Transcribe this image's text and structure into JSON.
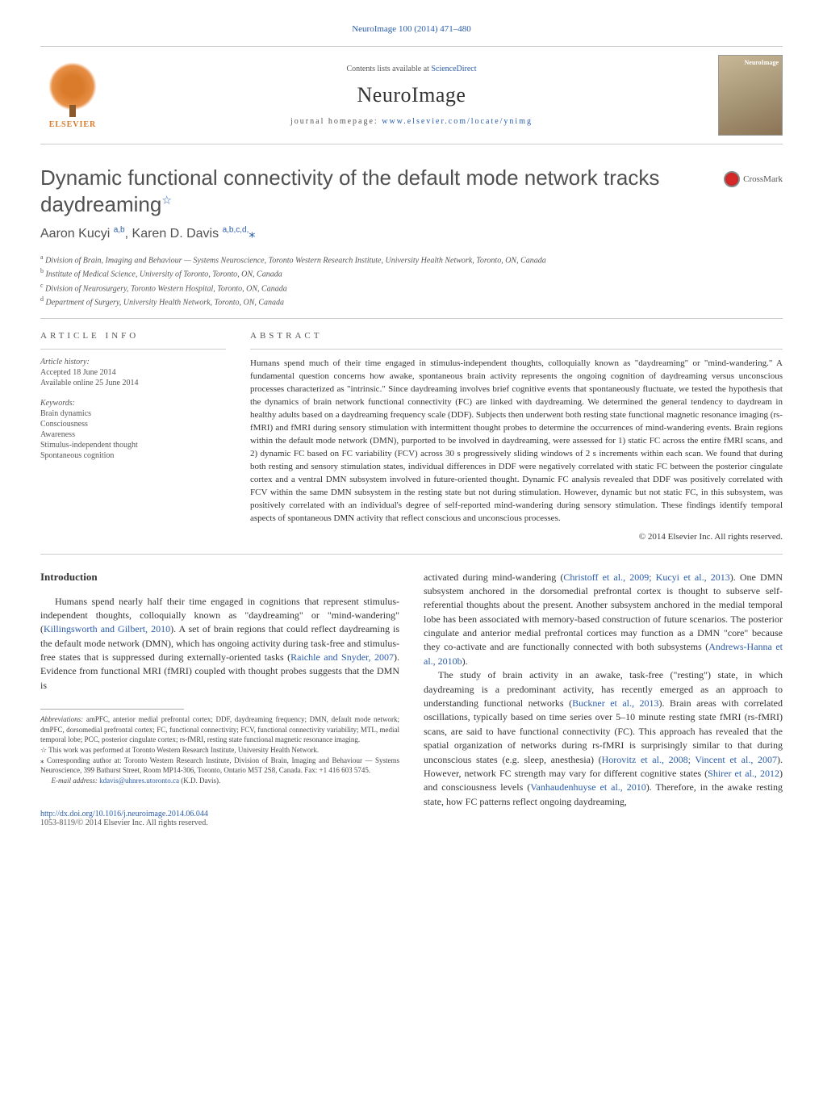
{
  "journal_ref": {
    "text": "NeuroImage 100 (2014) 471–480",
    "link_color": "#2a5caa"
  },
  "masthead": {
    "contents_prefix": "Contents lists available at ",
    "contents_link": "ScienceDirect",
    "journal_name": "NeuroImage",
    "homepage_prefix": "journal homepage: ",
    "homepage_url": "www.elsevier.com/locate/ynimg",
    "publisher_name": "ELSEVIER"
  },
  "crossmark_label": "CrossMark",
  "title": "Dynamic functional connectivity of the default mode network tracks daydreaming",
  "title_star": "☆",
  "authors": {
    "a1_name": "Aaron Kucyi ",
    "a1_sup": "a,b",
    "sep": ", ",
    "a2_name": "Karen D. Davis ",
    "a2_sup": "a,b,c,d,",
    "corr": "⁎"
  },
  "affiliations": {
    "a": "Division of Brain, Imaging and Behaviour — Systems Neuroscience, Toronto Western Research Institute, University Health Network, Toronto, ON, Canada",
    "b": "Institute of Medical Science, University of Toronto, Toronto, ON, Canada",
    "c": "Division of Neurosurgery, Toronto Western Hospital, Toronto, ON, Canada",
    "d": "Department of Surgery, University Health Network, Toronto, ON, Canada"
  },
  "article_info": {
    "heading": "ARTICLE INFO",
    "history_label": "Article history:",
    "accepted": "Accepted 18 June 2014",
    "online": "Available online 25 June 2014",
    "keywords_label": "Keywords:",
    "keywords": [
      "Brain dynamics",
      "Consciousness",
      "Awareness",
      "Stimulus-independent thought",
      "Spontaneous cognition"
    ]
  },
  "abstract": {
    "heading": "ABSTRACT",
    "text": "Humans spend much of their time engaged in stimulus-independent thoughts, colloquially known as \"daydreaming\" or \"mind-wandering.\" A fundamental question concerns how awake, spontaneous brain activity represents the ongoing cognition of daydreaming versus unconscious processes characterized as \"intrinsic.\" Since daydreaming involves brief cognitive events that spontaneously fluctuate, we tested the hypothesis that the dynamics of brain network functional connectivity (FC) are linked with daydreaming. We determined the general tendency to daydream in healthy adults based on a daydreaming frequency scale (DDF). Subjects then underwent both resting state functional magnetic resonance imaging (rs-fMRI) and fMRI during sensory stimulation with intermittent thought probes to determine the occurrences of mind-wandering events. Brain regions within the default mode network (DMN), purported to be involved in daydreaming, were assessed for 1) static FC across the entire fMRI scans, and 2) dynamic FC based on FC variability (FCV) across 30 s progressively sliding windows of 2 s increments within each scan. We found that during both resting and sensory stimulation states, individual differences in DDF were negatively correlated with static FC between the posterior cingulate cortex and a ventral DMN subsystem involved in future-oriented thought. Dynamic FC analysis revealed that DDF was positively correlated with FCV within the same DMN subsystem in the resting state but not during stimulation. However, dynamic but not static FC, in this subsystem, was positively correlated with an individual's degree of self-reported mind-wandering during sensory stimulation. These findings identify temporal aspects of spontaneous DMN activity that reflect conscious and unconscious processes.",
    "copyright": "© 2014 Elsevier Inc. All rights reserved."
  },
  "intro": {
    "heading": "Introduction",
    "p1_a": "Humans spend nearly half their time engaged in cognitions that represent stimulus-independent thoughts, colloquially known as \"daydreaming\" or \"mind-wandering\" (",
    "p1_cite1": "Killingsworth and Gilbert, 2010",
    "p1_b": "). A set of brain regions that could reflect daydreaming is the default mode network (DMN), which has ongoing activity during task-free and stimulus-free states that is suppressed during externally-oriented tasks (",
    "p1_cite2": "Raichle and Snyder, 2007",
    "p1_c": "). Evidence from functional MRI (fMRI) coupled with thought probes suggests that the DMN is",
    "p2_a": "activated during mind-wandering (",
    "p2_cite1": "Christoff et al., 2009; Kucyi et al., 2013",
    "p2_b": "). One DMN subsystem anchored in the dorsomedial prefrontal cortex is thought to subserve self-referential thoughts about the present. Another subsystem anchored in the medial temporal lobe has been associated with memory-based construction of future scenarios. The posterior cingulate and anterior medial prefrontal cortices may function as a DMN \"core\" because they co-activate and are functionally connected with both subsystems (",
    "p2_cite2": "Andrews-Hanna et al., 2010b",
    "p2_c": ").",
    "p3_a": "The study of brain activity in an awake, task-free (\"resting\") state, in which daydreaming is a predominant activity, has recently emerged as an approach to understanding functional networks (",
    "p3_cite1": "Buckner et al., 2013",
    "p3_b": "). Brain areas with correlated oscillations, typically based on time series over 5–10 minute resting state fMRI (rs-fMRI) scans, are said to have functional connectivity (FC). This approach has revealed that the spatial organization of networks during rs-fMRI is surprisingly similar to that during unconscious states (e.g. sleep, anesthesia) (",
    "p3_cite2": "Horovitz et al., 2008; Vincent et al., 2007",
    "p3_c": "). However, network FC strength may vary for different cognitive states (",
    "p3_cite3": "Shirer et al., 2012",
    "p3_d": ") and consciousness levels (",
    "p3_cite4": "Vanhaudenhuyse et al., 2010",
    "p3_e": "). Therefore, in the awake resting state, how FC patterns reflect ongoing daydreaming,"
  },
  "footnotes": {
    "abbrev_label": "Abbreviations:",
    "abbrev_text": " amPFC, anterior medial prefrontal cortex; DDF, daydreaming frequency; DMN, default mode network; dmPFC, dorsomedial prefrontal cortex; FC, functional connectivity; FCV, functional connectivity variability; MTL, medial temporal lobe; PCC, posterior cingulate cortex; rs-fMRI, resting state functional magnetic resonance imaging.",
    "star_note": " This work was performed at Toronto Western Research Institute, University Health Network.",
    "corr_note": " Corresponding author at: Toronto Western Research Institute, Division of Brain, Imaging and Behaviour — Systems Neuroscience, 399 Bathurst Street, Room MP14-306, Toronto, Ontario M5T 2S8, Canada. Fax: +1 416 603 5745.",
    "email_label": "E-mail address:",
    "email": "kdavis@uhnres.utoronto.ca",
    "email_suffix": " (K.D. Davis)."
  },
  "footer": {
    "doi": "http://dx.doi.org/10.1016/j.neuroimage.2014.06.044",
    "issn_line": "1053-8119/© 2014 Elsevier Inc. All rights reserved."
  },
  "colors": {
    "link": "#2a5caa",
    "text": "#333333",
    "muted": "#555555",
    "divider": "#cccccc"
  }
}
